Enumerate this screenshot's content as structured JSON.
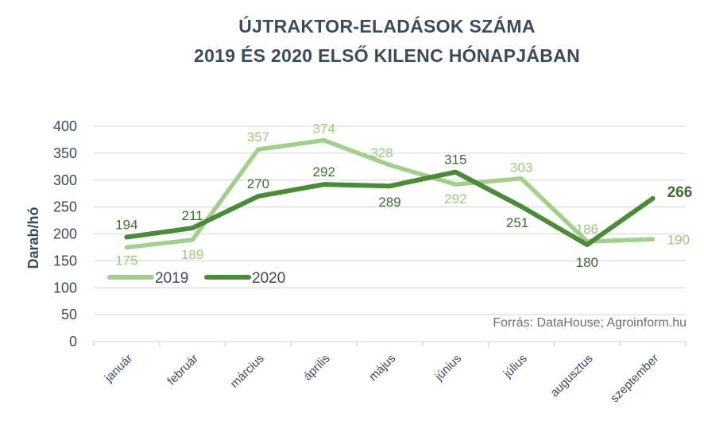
{
  "chart_data": {
    "type": "line",
    "title": [
      "ÚJTRAKTOR-ELADÁSOK SZÁMA",
      "2019 ÉS 2020 ELSŐ KILENC HÓNAPJÁBAN"
    ],
    "ylabel": "Darab/hó",
    "xlabel": "",
    "ylim": [
      0,
      400
    ],
    "yticks": [
      0,
      50,
      100,
      150,
      200,
      250,
      300,
      350,
      400
    ],
    "grid": true,
    "legend_position": "inside-left",
    "categories": [
      "január",
      "február",
      "március",
      "április",
      "május",
      "június",
      "július",
      "augusztus",
      "szeptember"
    ],
    "series": [
      {
        "name": "2019",
        "color": "#a3cf8c",
        "label_color": "#9cc97c",
        "values": [
          175,
          189,
          357,
          374,
          328,
          292,
          303,
          186,
          190
        ]
      },
      {
        "name": "2020",
        "color": "#4b8a38",
        "label_color": "#3f6a31",
        "values": [
          194,
          211,
          270,
          292,
          289,
          315,
          251,
          180,
          266
        ]
      }
    ],
    "source": "Forrás: DataHouse; Agroinform.hu"
  }
}
